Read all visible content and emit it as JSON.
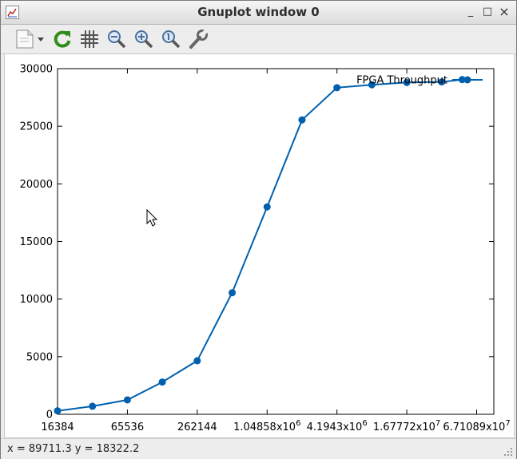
{
  "window": {
    "title": "Gnuplot window 0",
    "minimize_glyph": "_",
    "maximize_glyph": "□",
    "close_glyph": "×"
  },
  "toolbar": {
    "icons": [
      "export-icon",
      "replot-icon",
      "grid-icon",
      "zoom-prev-icon",
      "zoom-next-icon",
      "autoscale-icon",
      "config-icon"
    ]
  },
  "status": {
    "text": "x = 89711.3 y = 18322.2"
  },
  "colors": {
    "series": "#0060ad",
    "background": "#ffffff",
    "frame": "#000000"
  },
  "chart_data": {
    "type": "line",
    "title": "",
    "xlabel": "",
    "ylabel": "",
    "x_scale": "log2",
    "xlim": [
      16384,
      94371840
    ],
    "ylim": [
      0,
      30000
    ],
    "yticks": [
      0,
      5000,
      10000,
      15000,
      20000,
      25000,
      30000
    ],
    "xticks": [
      {
        "value": 16384,
        "label": "16384",
        "sup": ""
      },
      {
        "value": 65536,
        "label": "65536",
        "sup": ""
      },
      {
        "value": 262144,
        "label": "262144",
        "sup": ""
      },
      {
        "value": 1048576,
        "label": "1.04858x10",
        "sup": "6"
      },
      {
        "value": 4194304,
        "label": "4.1943x10",
        "sup": "6"
      },
      {
        "value": 16777216,
        "label": "1.67772x10",
        "sup": "7"
      },
      {
        "value": 67108864,
        "label": "6.71089x10",
        "sup": "7"
      }
    ],
    "legend_position": "top-right",
    "grid": false,
    "series": [
      {
        "name": "FPGA Throughput",
        "x": [
          16384,
          32768,
          65536,
          131072,
          262144,
          524288,
          1048576,
          2097152,
          4194304,
          8388608,
          16777216,
          33554432,
          50331648
        ],
        "y": [
          300,
          700,
          1250,
          2800,
          4650,
          10550,
          18000,
          25550,
          28350,
          28600,
          28800,
          28850,
          29050
        ]
      }
    ]
  }
}
